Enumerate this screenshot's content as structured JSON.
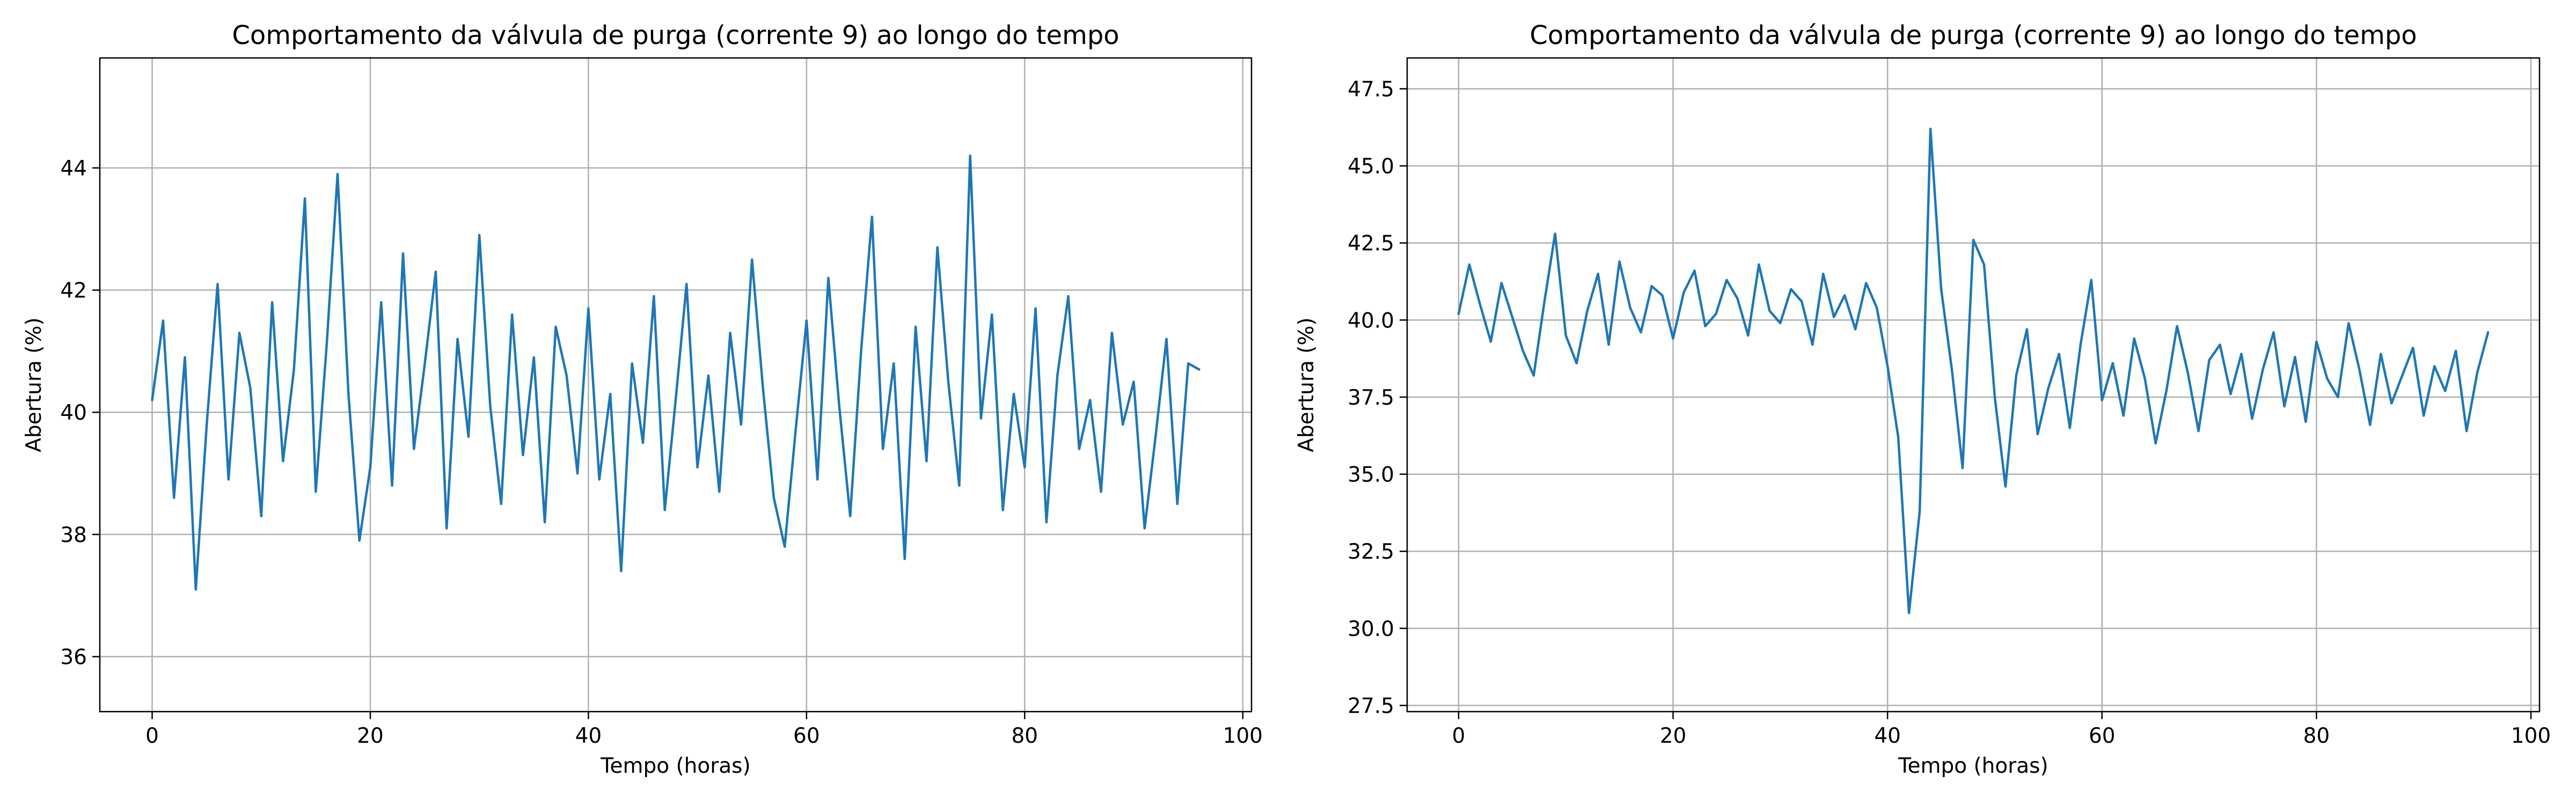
{
  "chart_data": [
    {
      "type": "line",
      "title": "Comportamento da válvula de purga (corrente 9) ao longo do tempo",
      "xlabel": "Tempo (horas)",
      "ylabel": "Abertura (%)",
      "xlim": [
        -4.8,
        100.8
      ],
      "ylim": [
        35.1,
        45.8
      ],
      "xticks": [
        0,
        20,
        40,
        60,
        80,
        100
      ],
      "yticks": [
        36,
        38,
        40,
        42,
        44
      ],
      "ytick_labels": [
        "36",
        "38",
        "40",
        "42",
        "44"
      ],
      "grid": true,
      "line_color": "#1f77b4",
      "series": [
        {
          "x": [
            0,
            1,
            2,
            3,
            4,
            5,
            6,
            7,
            8,
            9,
            10,
            11,
            12,
            13,
            14,
            15,
            16,
            17,
            18,
            19,
            20,
            21,
            22,
            23,
            24,
            25,
            26,
            27,
            28,
            29,
            30,
            31,
            32,
            33,
            34,
            35,
            36,
            37,
            38,
            39,
            40,
            41,
            42,
            43,
            44,
            45,
            46,
            47,
            48,
            49,
            50,
            51,
            52,
            53,
            54,
            55,
            56,
            57,
            58,
            59,
            60,
            61,
            62,
            63,
            64,
            65,
            66,
            67,
            68,
            69,
            70,
            71,
            72,
            73,
            74,
            75,
            76,
            77,
            78,
            79,
            80,
            81,
            82,
            83,
            84,
            85,
            86,
            87,
            88,
            89,
            90,
            91,
            92,
            93,
            94,
            95,
            96
          ],
          "y": [
            40.2,
            41.5,
            38.6,
            40.9,
            37.1,
            39.8,
            42.1,
            38.9,
            41.3,
            40.4,
            38.3,
            41.8,
            39.2,
            40.7,
            43.5,
            38.7,
            41.1,
            43.9,
            40.3,
            37.9,
            39.1,
            41.8,
            38.8,
            42.6,
            39.4,
            40.8,
            42.3,
            38.1,
            41.2,
            39.6,
            42.9,
            40.1,
            38.5,
            41.6,
            39.3,
            40.9,
            38.2,
            41.4,
            40.6,
            39.0,
            41.7,
            38.9,
            40.3,
            37.4,
            40.8,
            39.5,
            41.9,
            38.4,
            40.2,
            42.1,
            39.1,
            40.6,
            38.7,
            41.3,
            39.8,
            42.5,
            40.4,
            38.6,
            37.8,
            39.7,
            41.5,
            38.9,
            42.2,
            40.1,
            38.3,
            41.0,
            43.2,
            39.4,
            40.8,
            37.6,
            41.4,
            39.2,
            42.7,
            40.5,
            38.8,
            44.2,
            39.9,
            41.6,
            38.4,
            40.3,
            39.1,
            41.7,
            38.2,
            40.6,
            41.9,
            39.4,
            40.2,
            38.7,
            41.3,
            39.8,
            40.5,
            38.1,
            39.6,
            41.2,
            38.5,
            40.8,
            40.7
          ]
        }
      ]
    },
    {
      "type": "line",
      "title": "Comportamento da válvula de purga (corrente 9) ao longo do tempo",
      "xlabel": "Tempo (horas)",
      "ylabel": "Abertura (%)",
      "xlim": [
        -4.8,
        100.8
      ],
      "ylim": [
        27.3,
        48.5
      ],
      "xticks": [
        0,
        20,
        40,
        60,
        80,
        100
      ],
      "yticks": [
        27.5,
        30.0,
        32.5,
        35.0,
        37.5,
        40.0,
        42.5,
        45.0,
        47.5
      ],
      "ytick_labels": [
        "27.5",
        "30.0",
        "32.5",
        "35.0",
        "37.5",
        "40.0",
        "42.5",
        "45.0",
        "47.5"
      ],
      "grid": true,
      "line_color": "#1f77b4",
      "series": [
        {
          "x": [
            0,
            1,
            2,
            3,
            4,
            5,
            6,
            7,
            8,
            9,
            10,
            11,
            12,
            13,
            14,
            15,
            16,
            17,
            18,
            19,
            20,
            21,
            22,
            23,
            24,
            25,
            26,
            27,
            28,
            29,
            30,
            31,
            32,
            33,
            34,
            35,
            36,
            37,
            38,
            39,
            40,
            41,
            42,
            43,
            44,
            45,
            46,
            47,
            48,
            49,
            50,
            51,
            52,
            53,
            54,
            55,
            56,
            57,
            58,
            59,
            60,
            61,
            62,
            63,
            64,
            65,
            66,
            67,
            68,
            69,
            70,
            71,
            72,
            73,
            74,
            75,
            76,
            77,
            78,
            79,
            80,
            81,
            82,
            83,
            84,
            85,
            86,
            87,
            88,
            89,
            90,
            91,
            92,
            93,
            94,
            95,
            96
          ],
          "y": [
            40.2,
            41.8,
            40.5,
            39.3,
            41.2,
            40.1,
            39.0,
            38.2,
            40.6,
            42.8,
            39.5,
            38.6,
            40.3,
            41.5,
            39.2,
            41.9,
            40.4,
            39.6,
            41.1,
            40.8,
            39.4,
            40.9,
            41.6,
            39.8,
            40.2,
            41.3,
            40.7,
            39.5,
            41.8,
            40.3,
            39.9,
            41.0,
            40.6,
            39.2,
            41.5,
            40.1,
            40.8,
            39.7,
            41.2,
            40.4,
            38.5,
            36.2,
            30.5,
            33.8,
            46.2,
            41.0,
            38.4,
            35.2,
            42.6,
            41.8,
            37.5,
            34.6,
            38.2,
            39.7,
            36.3,
            37.8,
            38.9,
            36.5,
            39.2,
            41.3,
            37.4,
            38.6,
            36.9,
            39.4,
            38.1,
            36.0,
            37.7,
            39.8,
            38.3,
            36.4,
            38.7,
            39.2,
            37.6,
            38.9,
            36.8,
            38.4,
            39.6,
            37.2,
            38.8,
            36.7,
            39.3,
            38.1,
            37.5,
            39.9,
            38.4,
            36.6,
            38.9,
            37.3,
            38.2,
            39.1,
            36.9,
            38.5,
            37.7,
            39.0,
            36.4,
            38.3,
            39.6
          ]
        }
      ]
    }
  ]
}
